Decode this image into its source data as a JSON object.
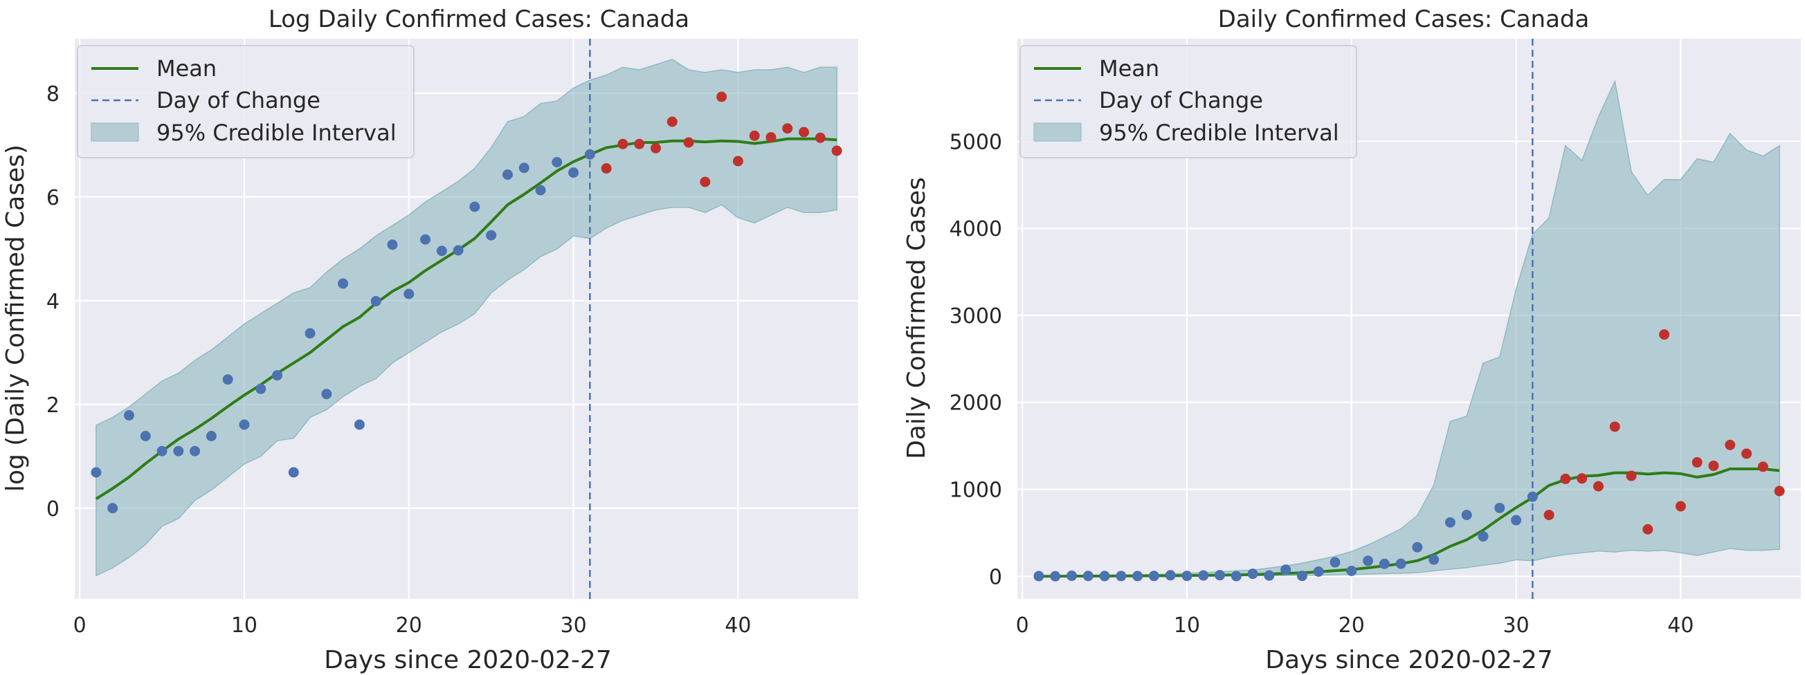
{
  "colors": {
    "background": "#EAEAF2",
    "grid": "#FFFFFF",
    "mean": "#2E7D17",
    "day_of_change": "#4C72B0",
    "ci_fill": "#8FB9C2",
    "observed_before": "#4C72B0",
    "observed_after": "#C0312B"
  },
  "chart_data": [
    {
      "type": "line",
      "title": "Log Daily Confirmed Cases: Canada",
      "xlabel": "Days since 2020-02-27",
      "ylabel": "log (Daily Confirmed Cases)",
      "xlim": [
        -0.3,
        47.3
      ],
      "ylim": [
        -1.75,
        9.05
      ],
      "xticks": [
        0,
        10,
        20,
        30,
        40
      ],
      "yticks": [
        0,
        2,
        4,
        6,
        8
      ],
      "grid": true,
      "legend": {
        "position": "top-left",
        "entries": [
          "Mean",
          "Day of Change",
          "95% Credible Interval"
        ]
      },
      "day_of_change": 31,
      "mean": {
        "x": [
          1,
          2,
          3,
          4,
          5,
          6,
          7,
          8,
          9,
          10,
          11,
          12,
          13,
          14,
          15,
          16,
          17,
          18,
          19,
          20,
          21,
          22,
          23,
          24,
          25,
          26,
          27,
          28,
          29,
          30,
          31,
          32,
          33,
          34,
          35,
          36,
          37,
          38,
          39,
          40,
          41,
          42,
          43,
          44,
          45,
          46
        ],
        "y": [
          0.18,
          0.38,
          0.6,
          0.86,
          1.1,
          1.33,
          1.52,
          1.73,
          1.96,
          2.18,
          2.38,
          2.6,
          2.8,
          3.0,
          3.25,
          3.5,
          3.68,
          3.95,
          4.18,
          4.35,
          4.58,
          4.78,
          4.98,
          5.2,
          5.52,
          5.85,
          6.05,
          6.27,
          6.5,
          6.68,
          6.82,
          6.95,
          7.0,
          7.05,
          7.05,
          7.08,
          7.08,
          7.06,
          7.08,
          7.07,
          7.03,
          7.07,
          7.12,
          7.12,
          7.12,
          7.1
        ]
      },
      "ci_upper": [
        1.6,
        1.75,
        1.95,
        2.2,
        2.45,
        2.6,
        2.85,
        3.05,
        3.3,
        3.55,
        3.75,
        3.95,
        4.15,
        4.25,
        4.55,
        4.8,
        5.0,
        5.25,
        5.45,
        5.65,
        5.9,
        6.1,
        6.3,
        6.55,
        6.95,
        7.45,
        7.55,
        7.8,
        7.85,
        8.1,
        8.25,
        8.35,
        8.5,
        8.45,
        8.55,
        8.65,
        8.45,
        8.4,
        8.45,
        8.4,
        8.45,
        8.45,
        8.5,
        8.4,
        8.5,
        8.5
      ],
      "ci_lower": [
        -1.3,
        -1.15,
        -0.95,
        -0.7,
        -0.35,
        -0.2,
        0.15,
        0.35,
        0.6,
        0.85,
        1.0,
        1.3,
        1.35,
        1.75,
        1.9,
        2.15,
        2.35,
        2.5,
        2.8,
        3.0,
        3.2,
        3.4,
        3.55,
        3.75,
        4.15,
        4.4,
        4.6,
        4.85,
        5.0,
        5.25,
        5.2,
        5.4,
        5.55,
        5.65,
        5.75,
        5.8,
        5.8,
        5.7,
        5.85,
        5.6,
        5.5,
        5.65,
        5.8,
        5.7,
        5.7,
        5.75
      ],
      "observed": {
        "x": [
          1,
          2,
          3,
          4,
          5,
          6,
          7,
          8,
          9,
          10,
          11,
          12,
          13,
          14,
          15,
          16,
          17,
          18,
          19,
          20,
          21,
          22,
          23,
          24,
          25,
          26,
          27,
          28,
          29,
          30,
          31,
          32,
          33,
          34,
          35,
          36,
          37,
          38,
          39,
          40,
          41,
          42,
          43,
          44,
          45,
          46
        ],
        "y": [
          0.69,
          0.0,
          1.79,
          1.39,
          1.1,
          1.1,
          1.1,
          1.39,
          2.48,
          1.61,
          2.3,
          2.56,
          0.69,
          3.37,
          2.2,
          4.33,
          1.61,
          3.99,
          5.08,
          4.13,
          5.18,
          4.96,
          4.97,
          5.81,
          5.26,
          6.43,
          6.56,
          6.13,
          6.67,
          6.47,
          6.82,
          6.55,
          7.02,
          7.02,
          6.94,
          7.45,
          7.05,
          6.29,
          7.93,
          6.69,
          7.18,
          7.15,
          7.32,
          7.25,
          7.14,
          6.89
        ]
      }
    },
    {
      "type": "line",
      "title": "Daily Confirmed Cases: Canada",
      "xlabel": "Days since 2020-02-27",
      "ylabel": "Daily Confirmed Cases",
      "xlim": [
        -0.3,
        47.3
      ],
      "ylim": [
        -260,
        6180
      ],
      "xticks": [
        0,
        10,
        20,
        30,
        40
      ],
      "yticks": [
        0,
        1000,
        2000,
        3000,
        4000,
        5000
      ],
      "grid": true,
      "legend": {
        "position": "top-left",
        "entries": [
          "Mean",
          "Day of Change",
          "95% Credible Interval"
        ]
      },
      "day_of_change": 31,
      "mean": {
        "x": [
          1,
          2,
          3,
          4,
          5,
          6,
          7,
          8,
          9,
          10,
          11,
          12,
          13,
          14,
          15,
          16,
          17,
          18,
          19,
          20,
          21,
          22,
          23,
          24,
          25,
          26,
          27,
          28,
          29,
          30,
          31,
          32,
          33,
          34,
          35,
          36,
          37,
          38,
          39,
          40,
          41,
          42,
          43,
          44,
          45,
          46
        ],
        "y": [
          1,
          1,
          2,
          2,
          3,
          4,
          5,
          6,
          7,
          9,
          11,
          13,
          16,
          20,
          26,
          33,
          40,
          52,
          65,
          78,
          98,
          120,
          145,
          180,
          250,
          345,
          420,
          530,
          665,
          790,
          905,
          1045,
          1110,
          1150,
          1160,
          1190,
          1190,
          1175,
          1190,
          1180,
          1140,
          1170,
          1235,
          1235,
          1235,
          1215
        ]
      },
      "ci_upper": [
        5,
        6,
        7,
        9,
        12,
        14,
        17,
        21,
        27,
        35,
        43,
        52,
        63,
        71,
        95,
        120,
        150,
        190,
        230,
        285,
        360,
        450,
        545,
        700,
        1050,
        1780,
        1840,
        2450,
        2520,
        3300,
        3930,
        4120,
        4950,
        4780,
        5280,
        5690,
        4650,
        4380,
        4560,
        4560,
        4800,
        4760,
        5090,
        4900,
        4830,
        4950
      ],
      "ci_lower": [
        0,
        0,
        0,
        0,
        1,
        1,
        1,
        1,
        2,
        2,
        3,
        4,
        4,
        6,
        7,
        9,
        10,
        12,
        16,
        20,
        25,
        30,
        35,
        42,
        64,
        82,
        100,
        128,
        150,
        190,
        180,
        220,
        250,
        270,
        290,
        280,
        300,
        290,
        300,
        270,
        240,
        280,
        320,
        300,
        300,
        310
      ],
      "observed": {
        "x": [
          1,
          2,
          3,
          4,
          5,
          6,
          7,
          8,
          9,
          10,
          11,
          12,
          13,
          14,
          15,
          16,
          17,
          18,
          19,
          20,
          21,
          22,
          23,
          24,
          25,
          26,
          27,
          28,
          29,
          30,
          31,
          32,
          33,
          34,
          35,
          36,
          37,
          38,
          39,
          40,
          41,
          42,
          43,
          44,
          45,
          46
        ],
        "y": [
          2,
          1,
          6,
          4,
          3,
          3,
          3,
          4,
          12,
          5,
          10,
          13,
          2,
          29,
          9,
          76,
          5,
          54,
          161,
          62,
          178,
          143,
          144,
          334,
          192,
          620,
          705,
          459,
          786,
          645,
          915,
          705,
          1120,
          1125,
          1035,
          1720,
          1155,
          540,
          2780,
          805,
          1310,
          1270,
          1510,
          1410,
          1260,
          980
        ]
      }
    }
  ]
}
